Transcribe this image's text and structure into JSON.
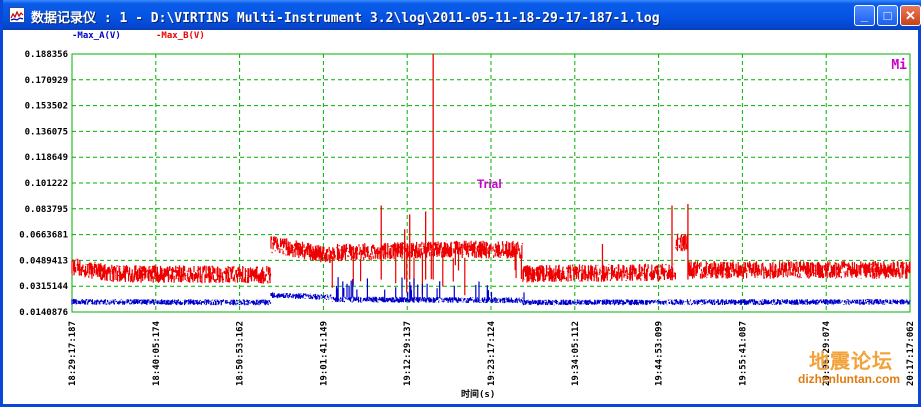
{
  "window": {
    "title": "数据记录仪 : 1 - D:\\VIRTINS Multi-Instrument 3.2\\log\\2011-05-11-18-29-17-187-1.log",
    "minimize_glyph": "_",
    "maximize_glyph": "□",
    "close_glyph": "✕"
  },
  "colors": {
    "series_a": "#0000cc",
    "series_b": "#ee0000",
    "grid": "#00b000",
    "annotation": "#cc00cc"
  },
  "chart_data": {
    "type": "line",
    "ylim": [
      0.0140876,
      0.188356
    ],
    "y_ticks": [
      "0.188356",
      "0.170929",
      "0.153502",
      "0.136075",
      "0.118649",
      "0.101222",
      "0.083795",
      "0.0663681",
      "0.0489413",
      "0.0315144",
      "0.0140876"
    ],
    "x_ticks": [
      "18:29:17:187",
      "18:40:05:174",
      "18:50:53:162",
      "19:01:41:149",
      "19:12:29:137",
      "19:23:17:124",
      "19:34:05:112",
      "19:44:53:099",
      "19:55:41:087",
      "20:06:29:074",
      "20:17:17:062"
    ],
    "xlabel": "时间(s)",
    "series": [
      {
        "name": "-Max_A(V)"
      },
      {
        "name": "-Max_B(V)"
      }
    ],
    "annotations": {
      "top_right": "Mi",
      "center": "Trial"
    },
    "grid": true
  },
  "watermark": {
    "text": "地震论坛",
    "url": "dizhenluntan.com"
  }
}
